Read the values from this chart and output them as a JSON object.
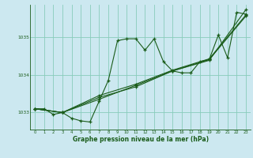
{
  "title": "Graphe pression niveau de la mer (hPa)",
  "bg_color": "#cce8f0",
  "grid_color": "#88ccbb",
  "line_color": "#1a5c1a",
  "xlim": [
    -0.5,
    23.5
  ],
  "ylim": [
    1032.55,
    1035.85
  ],
  "yticks": [
    1033,
    1034,
    1035
  ],
  "xticks": [
    0,
    1,
    2,
    3,
    4,
    5,
    6,
    7,
    8,
    9,
    10,
    11,
    12,
    13,
    14,
    15,
    16,
    17,
    18,
    19,
    20,
    21,
    22,
    23
  ],
  "series1": {
    "x": [
      0,
      1,
      2,
      3,
      4,
      5,
      6,
      7,
      8,
      9,
      10,
      11,
      12,
      13,
      14,
      15,
      16,
      17,
      18,
      19,
      20,
      21,
      22,
      23
    ],
    "y": [
      1033.1,
      1033.1,
      1032.95,
      1033.0,
      1032.85,
      1032.78,
      1032.75,
      1033.3,
      1033.85,
      1034.9,
      1034.95,
      1034.95,
      1034.65,
      1034.95,
      1034.35,
      1034.1,
      1034.05,
      1034.05,
      1034.35,
      1034.4,
      1035.05,
      1034.45,
      1035.65,
      1035.6
    ]
  },
  "series2": {
    "x": [
      0,
      3,
      7,
      11,
      15,
      19,
      23
    ],
    "y": [
      1033.1,
      1033.0,
      1033.35,
      1033.72,
      1034.1,
      1034.4,
      1035.55
    ]
  },
  "series3": {
    "x": [
      0,
      3,
      7,
      11,
      15,
      19,
      23
    ],
    "y": [
      1033.1,
      1033.0,
      1033.4,
      1033.68,
      1034.1,
      1034.38,
      1035.72
    ]
  },
  "series4": {
    "x": [
      0,
      3,
      7,
      11,
      15,
      19,
      23
    ],
    "y": [
      1033.1,
      1033.0,
      1033.45,
      1033.75,
      1034.12,
      1034.42,
      1035.58
    ]
  }
}
